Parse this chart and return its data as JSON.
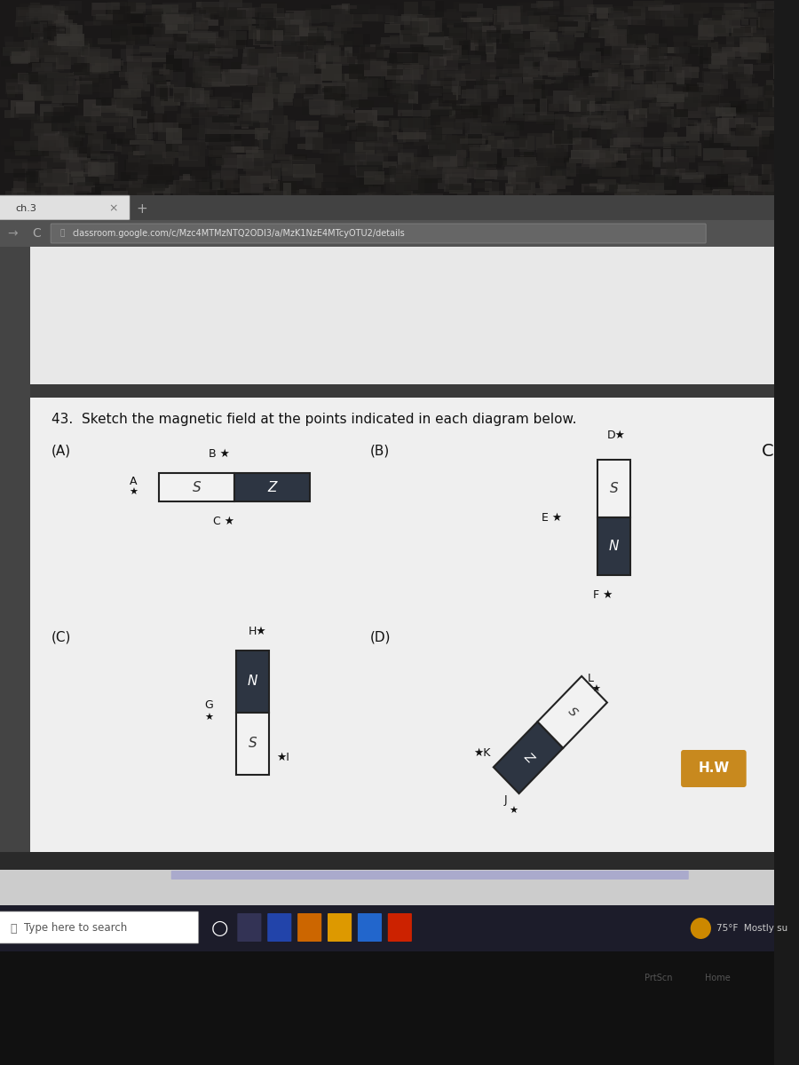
{
  "bg_dark": "#1a1a1a",
  "desktop_bg": "#1e1e1e",
  "browser_chrome": "#3d3d3d",
  "tab_active": "#e0e0e0",
  "addr_bar_bg": "#4a4a4a",
  "url_input_bg": "#5a5a5a",
  "page_bg": "#e8e8e8",
  "page_content_bg": "#ebebeb",
  "dark_divider": "#2a2a2a",
  "magnet_dark": "#2d3542",
  "magnet_light": "#f5f5f5",
  "magnet_border": "#222222",
  "question_text": "43.  Sketch the magnetic field at the points indicated in each diagram below.",
  "url_text": "classroom.google.com/c/Mzc4MTMzNTQ2ODI3/a/MzK1NzE4MTcyOTU2/details",
  "tab_text": "ch.3",
  "hw_button_color": "#c8891e",
  "hw_button_text": "H.W",
  "taskbar_bg": "#1e1e2a",
  "taskbar_search": "Type here to search",
  "weather_text": "75°F  Mostly su",
  "bottom_dark": "#111111"
}
